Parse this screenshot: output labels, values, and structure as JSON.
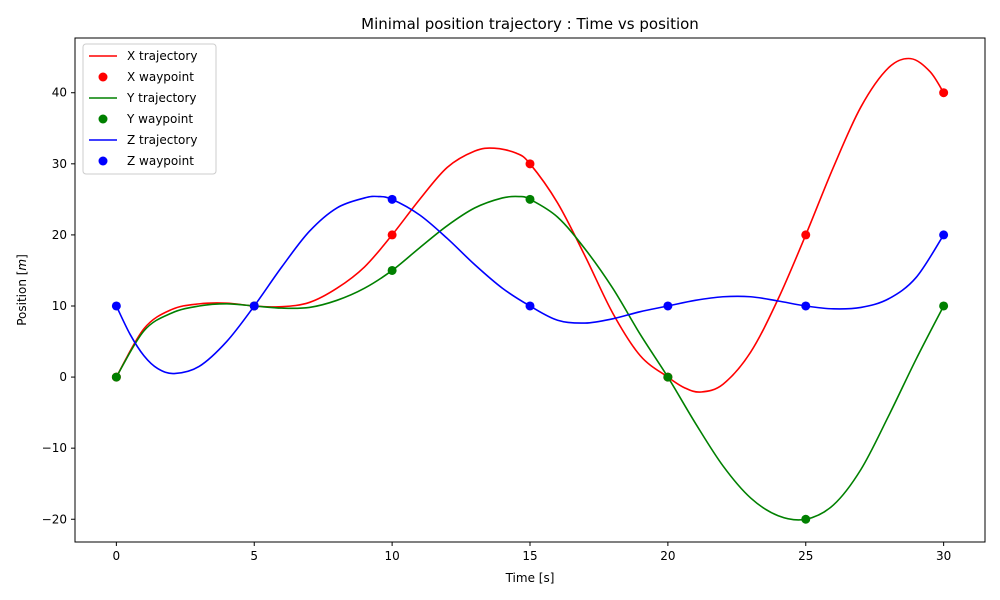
{
  "chart_data": {
    "type": "line",
    "title": "Minimal position trajectory : Time vs position",
    "xlabel": "Time [s]",
    "ylabel_prefix": "Position [",
    "ylabel_unit": "m",
    "ylabel_suffix": "]",
    "xlim": [
      -1.5,
      31.5
    ],
    "ylim": [
      -23.2,
      47.7
    ],
    "xticks": [
      0,
      5,
      10,
      15,
      20,
      25,
      30
    ],
    "xtick_labels": [
      "0",
      "5",
      "10",
      "15",
      "20",
      "25",
      "30"
    ],
    "yticks": [
      -20,
      -10,
      0,
      10,
      20,
      30,
      40
    ],
    "ytick_labels": [
      "−20",
      "−10",
      "0",
      "10",
      "20",
      "30",
      "40"
    ],
    "grid": false,
    "legend_position": "top-left",
    "waypoint_times": [
      0,
      5,
      10,
      15,
      20,
      25,
      30
    ],
    "series": [
      {
        "name": "X trajectory",
        "waypoint_name": "X waypoint",
        "color": "#ff0000",
        "trajectory": [
          [
            0,
            0
          ],
          [
            1,
            6.8
          ],
          [
            2,
            9.5
          ],
          [
            3,
            10.3
          ],
          [
            4,
            10.4
          ],
          [
            5,
            10
          ],
          [
            6,
            9.9
          ],
          [
            7,
            10.5
          ],
          [
            8,
            12.5
          ],
          [
            9,
            15.5
          ],
          [
            10,
            20
          ],
          [
            11,
            25
          ],
          [
            12,
            29.5
          ],
          [
            13,
            31.8
          ],
          [
            13.7,
            32.2
          ],
          [
            14.5,
            31.5
          ],
          [
            15,
            30
          ],
          [
            16,
            24.5
          ],
          [
            17,
            17
          ],
          [
            18,
            9
          ],
          [
            19,
            3
          ],
          [
            20,
            0
          ],
          [
            20.6,
            -1.5
          ],
          [
            21.2,
            -2.1
          ],
          [
            22,
            -1
          ],
          [
            23,
            3.5
          ],
          [
            24,
            11
          ],
          [
            25,
            20
          ],
          [
            26,
            29.5
          ],
          [
            27,
            38
          ],
          [
            28,
            43.5
          ],
          [
            28.8,
            44.8
          ],
          [
            29.5,
            43
          ],
          [
            30,
            40
          ]
        ],
        "waypoints": [
          0,
          10,
          20,
          30,
          0,
          20,
          40
        ]
      },
      {
        "name": "Y trajectory",
        "waypoint_name": "Y waypoint",
        "color": "#008000",
        "trajectory": [
          [
            0,
            0
          ],
          [
            1,
            6.5
          ],
          [
            2,
            9
          ],
          [
            3,
            10
          ],
          [
            4,
            10.3
          ],
          [
            5,
            10
          ],
          [
            6,
            9.7
          ],
          [
            7,
            9.8
          ],
          [
            8,
            10.8
          ],
          [
            9,
            12.5
          ],
          [
            10,
            15
          ],
          [
            11,
            18.2
          ],
          [
            12,
            21.3
          ],
          [
            13,
            23.8
          ],
          [
            14,
            25.2
          ],
          [
            14.6,
            25.4
          ],
          [
            15,
            25
          ],
          [
            16,
            22.5
          ],
          [
            17,
            18
          ],
          [
            18,
            12.5
          ],
          [
            19,
            6
          ],
          [
            20,
            0
          ],
          [
            21,
            -6.5
          ],
          [
            22,
            -12.5
          ],
          [
            23,
            -17
          ],
          [
            24,
            -19.5
          ],
          [
            25,
            -20
          ],
          [
            26,
            -18
          ],
          [
            27,
            -13
          ],
          [
            28,
            -5.5
          ],
          [
            29,
            2.5
          ],
          [
            30,
            10
          ]
        ],
        "waypoints": [
          0,
          10,
          15,
          25,
          0,
          -20,
          10
        ]
      },
      {
        "name": "Z trajectory",
        "waypoint_name": "Z waypoint",
        "color": "#0000ff",
        "trajectory": [
          [
            0,
            10
          ],
          [
            0.5,
            6
          ],
          [
            1,
            3
          ],
          [
            1.5,
            1.2
          ],
          [
            2.1,
            0.5
          ],
          [
            3,
            1.5
          ],
          [
            4,
            5
          ],
          [
            5,
            10
          ],
          [
            6,
            15.5
          ],
          [
            7,
            20.5
          ],
          [
            8,
            23.8
          ],
          [
            9,
            25.2
          ],
          [
            9.5,
            25.4
          ],
          [
            10,
            25
          ],
          [
            11,
            22.8
          ],
          [
            12,
            19.5
          ],
          [
            13,
            15.8
          ],
          [
            14,
            12.5
          ],
          [
            15,
            10
          ],
          [
            16,
            8
          ],
          [
            17,
            7.6
          ],
          [
            18,
            8.2
          ],
          [
            19,
            9.2
          ],
          [
            20,
            10
          ],
          [
            21,
            10.8
          ],
          [
            22,
            11.3
          ],
          [
            23,
            11.3
          ],
          [
            24,
            10.7
          ],
          [
            25,
            10
          ],
          [
            26,
            9.6
          ],
          [
            27,
            9.8
          ],
          [
            28,
            11
          ],
          [
            29,
            14
          ],
          [
            30,
            20
          ]
        ],
        "waypoints": [
          10,
          10,
          25,
          10,
          10,
          10,
          20
        ]
      }
    ]
  }
}
